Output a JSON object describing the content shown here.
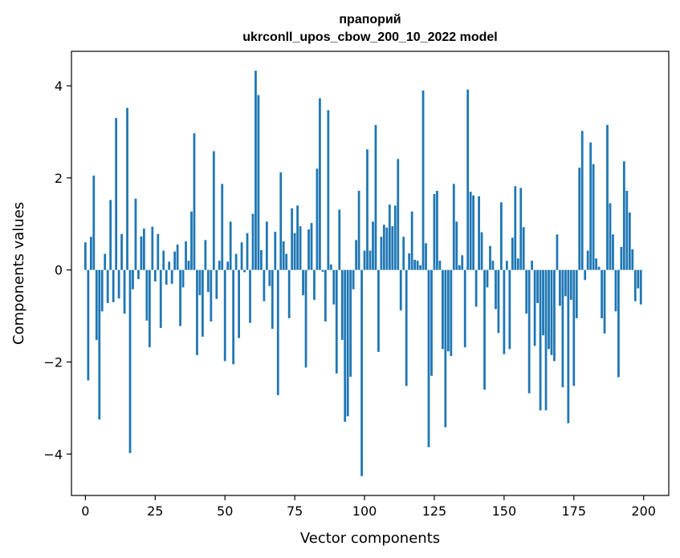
{
  "chart_data": {
    "type": "bar",
    "title_line1": "прапорий",
    "title_line2": "ukrconll_upos_cbow_200_10_2022 model",
    "xlabel": "Vector components",
    "ylabel": "Components values",
    "xlim": [
      -5,
      209
    ],
    "ylim": [
      -4.9,
      4.75
    ],
    "xticks": [
      0,
      25,
      50,
      75,
      100,
      125,
      150,
      175,
      200
    ],
    "xtick_labels": [
      "0",
      "25",
      "50",
      "75",
      "100",
      "125",
      "150",
      "175",
      "200"
    ],
    "yticks": [
      -4,
      -2,
      0,
      2,
      4
    ],
    "ytick_labels": [
      "−4",
      "−2",
      "0",
      "2",
      "4"
    ],
    "bar_color": "#1f77b4",
    "values": [
      0.6,
      -2.4,
      0.72,
      2.05,
      -1.52,
      -3.25,
      -0.9,
      0.35,
      -0.72,
      1.52,
      -0.7,
      3.3,
      -0.62,
      0.78,
      -0.95,
      3.52,
      -3.98,
      -0.42,
      1.55,
      -0.2,
      0.73,
      0.9,
      -1.1,
      -1.68,
      0.94,
      -0.25,
      0.78,
      -1.26,
      0.42,
      -0.32,
      0.18,
      -0.3,
      0.4,
      0.55,
      -1.22,
      -0.38,
      0.62,
      0.2,
      1.27,
      2.97,
      -1.85,
      -0.55,
      -1.45,
      0.65,
      -0.48,
      -1.12,
      2.58,
      -0.63,
      0.2,
      1.87,
      -1.98,
      0.18,
      1.05,
      -2.05,
      0.35,
      -1.48,
      0.6,
      -0.05,
      0.8,
      -1.15,
      1.22,
      4.33,
      3.8,
      0.43,
      -0.68,
      1.05,
      -0.35,
      -1.28,
      0.83,
      -2.72,
      2.12,
      0.62,
      0.35,
      -1.05,
      1.34,
      0.8,
      1.4,
      0.95,
      -0.55,
      -2.12,
      0.88,
      1.02,
      -0.65,
      2.2,
      3.73,
      -0.04,
      -1.12,
      3.47,
      0.12,
      -0.75,
      -2.25,
      1.31,
      -1.52,
      -3.3,
      -3.18,
      -2.32,
      -0.42,
      0.65,
      1.72,
      -4.48,
      0.42,
      2.62,
      0.42,
      1.05,
      3.15,
      -1.78,
      0.72,
      0.98,
      0.92,
      1.42,
      0.95,
      1.4,
      2.41,
      -0.88,
      0.72,
      -2.52,
      0.36,
      1.27,
      0.22,
      0.2,
      0.1,
      3.9,
      0.58,
      -3.85,
      -2.3,
      1.65,
      1.72,
      0.2,
      -1.72,
      -3.42,
      -1.77,
      -1.87,
      1.87,
      1.05,
      0.1,
      0.32,
      -1.68,
      3.92,
      1.7,
      1.62,
      -0.8,
      1.6,
      0.82,
      -2.6,
      -0.38,
      0.52,
      0.2,
      -0.85,
      -1.37,
      1.47,
      -1.83,
      0.2,
      -1.72,
      0.7,
      1.82,
      0.25,
      1.78,
      0.93,
      -0.95,
      -2.68,
      0.2,
      -1.65,
      -0.72,
      -3.05,
      -1.42,
      -3.05,
      -1.72,
      -1.85,
      -1.98,
      0.77,
      -0.78,
      -2.55,
      -0.57,
      -3.33,
      -0.65,
      -2.52,
      -1.05,
      2.22,
      3.02,
      -0.22,
      0.42,
      2.77,
      2.3,
      0.25,
      0.07,
      -1.05,
      -1.38,
      3.15,
      1.45,
      0.77,
      -0.9,
      -2.33,
      0.5,
      2.36,
      1.72,
      1.25,
      0.45,
      -0.68,
      -0.4,
      -0.75
    ]
  }
}
